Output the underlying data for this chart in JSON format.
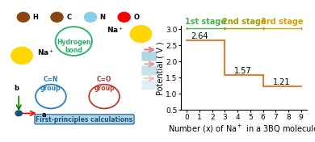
{
  "x_values": [
    0,
    1,
    2,
    3,
    3,
    4,
    5,
    6,
    6,
    7,
    8,
    9
  ],
  "y_values": [
    2.64,
    2.64,
    2.64,
    2.64,
    1.57,
    1.57,
    1.57,
    1.57,
    1.21,
    1.21,
    1.21,
    1.21
  ],
  "xlabel": "Number (x) of Na$^+$ in a 3BQ molecule",
  "ylabel": "Potential ( V )",
  "ylim": [
    0.5,
    3.1
  ],
  "xlim": [
    -0.5,
    9.5
  ],
  "yticks": [
    0.5,
    1.0,
    1.5,
    2.0,
    2.5,
    3.0
  ],
  "xticks": [
    0,
    1,
    2,
    3,
    4,
    5,
    6,
    7,
    8,
    9
  ],
  "line_color": "#e07020",
  "stage1_color": "#4caf50",
  "stage2_color": "#9c9c00",
  "stage3_color": "#d4a000",
  "stage1_label": "1st stage",
  "stage2_label": "2nd stage",
  "stage3_label": "3rd stage",
  "bg_color": "#ffffff",
  "label_fontsize": 7,
  "tick_fontsize": 6.5,
  "stage_fontsize": 7,
  "val_264_x": 0.3,
  "val_264_y": 2.64,
  "val_157_x": 3.7,
  "val_157_y": 1.57,
  "val_121_x": 6.8,
  "val_121_y": 1.21,
  "left_panel_bg": "#ddeeff",
  "first_principles_text": "First-principles calculations",
  "first_principles_color": "#1a5276",
  "first_principles_bg": "#aed6f1",
  "atom_symbols": [
    "H",
    "C",
    "N",
    "O"
  ],
  "atom_colors": [
    "#8B4513",
    "#8B4513",
    "#87CEEB",
    "#FF0000"
  ],
  "na_color": "#FFD700",
  "hydrogen_bond_color": "#27ae60",
  "cn_group_color": "#2980b9",
  "co_group_color": "#c0392b"
}
